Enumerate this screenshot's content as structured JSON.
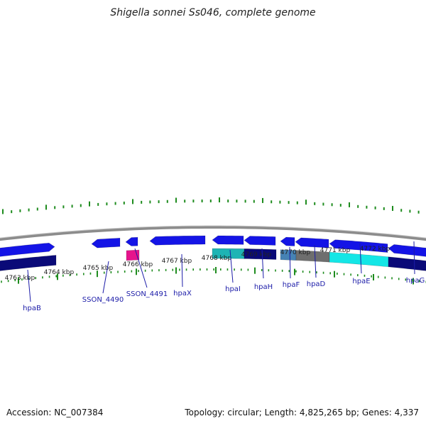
{
  "title": "Shigella sonnei Ss046, complete genome",
  "accession": "Accession: NC_007384",
  "stats": "Topology: circular; Length: 4,825,265 bp; Genes: 4,337",
  "scale_labels": [
    "4763 kbp",
    "4764 kbp",
    "4765 kbp",
    "4766 kbp",
    "4767 kbp",
    "4768 kbp",
    "4769 kbp",
    "4770 kbp",
    "4771 kbp",
    "4772 kbp"
  ],
  "genes": [
    "hpaB",
    "SSON_4490",
    "SSON_4491",
    "hpaX",
    "hpaI",
    "hpaH",
    "hpaF",
    "hpaD",
    "hpaE",
    "hpaG"
  ],
  "colors": {
    "cds": "#1414e6",
    "cog_navy": "#0a0a78",
    "cog_pink": "#e6148c",
    "cog_teal": "#1eb4b4",
    "cog_steel": "#4682b4",
    "cog_gray": "#6e6e6e",
    "cog_cyan": "#14e6e6",
    "backbone": "#8c8c8c",
    "tick": "#1e8c1e",
    "label": "#1c1ca8"
  }
}
